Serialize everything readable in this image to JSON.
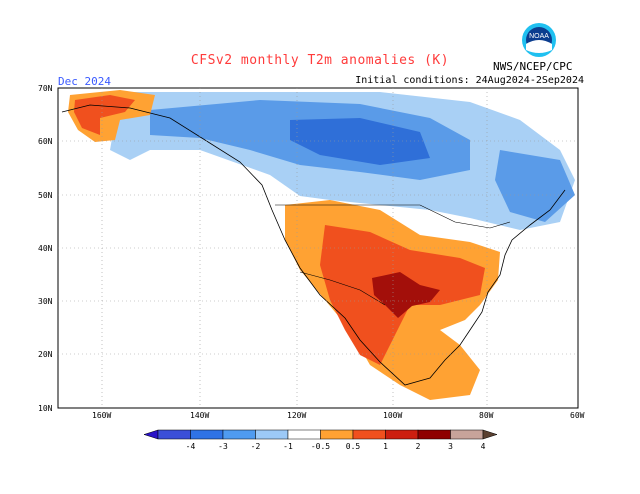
{
  "header": {
    "title": "CFSv2 monthly T2m anomalies (K)",
    "month_label": "Dec 2024",
    "initial_conditions": "Initial conditions: 24Aug2024-2Sep2024",
    "org_label": "NWS/NCEP/CPC",
    "logo_text": "NOAA"
  },
  "map": {
    "lat_labels": [
      "70N",
      "60N",
      "50N",
      "40N",
      "30N",
      "20N",
      "10N"
    ],
    "lon_labels": [
      "160W",
      "140W",
      "120W",
      "100W",
      "80W",
      "60W"
    ]
  },
  "legend": {
    "labels": [
      "-4",
      "-3",
      "-2",
      "-1",
      "-0.5",
      "0.5",
      "1",
      "2",
      "3",
      "4"
    ],
    "colors": [
      "#2a14c8",
      "#3b4fd8",
      "#2f73e6",
      "#4f9bf0",
      "#9cc9f7",
      "#ffffff",
      "#ffa233",
      "#f0501e",
      "#cc1f10",
      "#8f0000",
      "#c7a39a",
      "#5a4030"
    ]
  }
}
